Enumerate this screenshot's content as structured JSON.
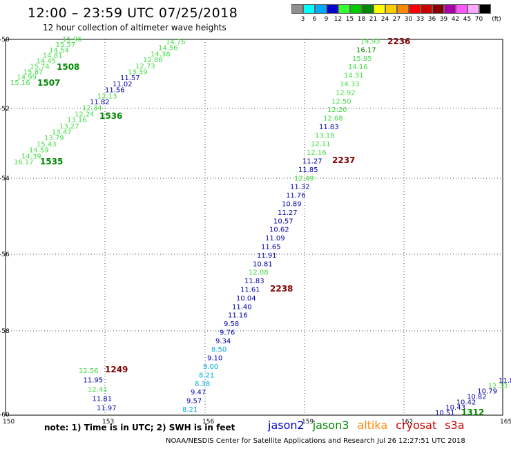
{
  "title": "12:00 – 23:59 UTC 07/25/2018",
  "subtitle": "12 hour collection of altimeter wave heights",
  "scale": {
    "unit": "(ft)",
    "items": [
      {
        "label": "3",
        "color": "#909090"
      },
      {
        "label": "6",
        "color": "#00ffff"
      },
      {
        "label": "9",
        "color": "#00aaff"
      },
      {
        "label": "12",
        "color": "#0000cc"
      },
      {
        "label": "15",
        "color": "#33ff33"
      },
      {
        "label": "18",
        "color": "#00cc00"
      },
      {
        "label": "21",
        "color": "#008800"
      },
      {
        "label": "24",
        "color": "#ffff00"
      },
      {
        "label": "27",
        "color": "#ffcc00"
      },
      {
        "label": "30",
        "color": "#ff8800"
      },
      {
        "label": "33",
        "color": "#ff0000"
      },
      {
        "label": "36",
        "color": "#cc0000"
      },
      {
        "label": "39",
        "color": "#880000"
      },
      {
        "label": "42",
        "color": "#aa00aa"
      },
      {
        "label": "45",
        "color": "#ff55ff"
      },
      {
        "label": "70",
        "color": "#ffaaff"
      },
      {
        "label": "",
        "color": "#000000"
      }
    ]
  },
  "axes": {
    "x_ticks": [
      "150",
      "153",
      "156",
      "159",
      "162",
      "165"
    ],
    "y_ticks": [
      "-50",
      "-52",
      "-54",
      "-56",
      "-58",
      "-60"
    ]
  },
  "colors": {
    "light_green": "#44dd44",
    "green": "#008800",
    "blue": "#0000aa",
    "light_blue": "#00aadd",
    "dark_red": "#800000"
  },
  "tracks": [
    {
      "pass": "1508",
      "pass_color": "#008800",
      "points": [
        {
          "v": "15.96",
          "c": "#44dd44"
        },
        {
          "v": "15.57",
          "c": "#44dd44"
        },
        {
          "v": "14.54",
          "c": "#44dd44"
        },
        {
          "v": "14.81",
          "c": "#44dd44"
        },
        {
          "v": "14.45",
          "c": "#44dd44"
        },
        {
          "v": "15.74",
          "c": "#44dd44"
        },
        {
          "v": "15.87",
          "c": "#44dd44"
        },
        {
          "v": "14.99",
          "c": "#44dd44"
        },
        {
          "v": "15.16",
          "c": "#44dd44"
        }
      ]
    },
    {
      "pass": "1507",
      "pass_color": "#008800",
      "points": []
    },
    {
      "pass": "1536",
      "pass_color": "#008800",
      "points": [
        {
          "v": "14.76",
          "c": "#44dd44"
        },
        {
          "v": "14.56",
          "c": "#44dd44"
        },
        {
          "v": "14.38",
          "c": "#44dd44"
        },
        {
          "v": "12.88",
          "c": "#44dd44"
        },
        {
          "v": "12.73",
          "c": "#44dd44"
        },
        {
          "v": "13.39",
          "c": "#44dd44"
        },
        {
          "v": "11.57",
          "c": "#0000aa"
        },
        {
          "v": "11.02",
          "c": "#0000aa"
        },
        {
          "v": "11.56",
          "c": "#0000aa"
        },
        {
          "v": "12.13",
          "c": "#44dd44"
        },
        {
          "v": "11.82",
          "c": "#0000aa"
        },
        {
          "v": "12.34",
          "c": "#44dd44"
        },
        {
          "v": "12.24",
          "c": "#44dd44"
        },
        {
          "v": "13.16",
          "c": "#44dd44"
        },
        {
          "v": "13.27",
          "c": "#44dd44"
        },
        {
          "v": "13.47",
          "c": "#44dd44"
        },
        {
          "v": "13.79",
          "c": "#44dd44"
        },
        {
          "v": "15.43",
          "c": "#44dd44"
        },
        {
          "v": "14.59",
          "c": "#44dd44"
        },
        {
          "v": "14.39",
          "c": "#44dd44"
        },
        {
          "v": "16.17",
          "c": "#44dd44"
        }
      ]
    },
    {
      "pass": "1535",
      "pass_color": "#008800",
      "points": []
    },
    {
      "pass": "2236",
      "pass_color": "#800000",
      "points": [
        {
          "v": "14.93",
          "c": "#44dd44"
        },
        {
          "v": "16.17",
          "c": "#008800"
        },
        {
          "v": "15.95",
          "c": "#44dd44"
        },
        {
          "v": "14.16",
          "c": "#44dd44"
        },
        {
          "v": "14.31",
          "c": "#44dd44"
        },
        {
          "v": "14.33",
          "c": "#44dd44"
        },
        {
          "v": "12.92",
          "c": "#44dd44"
        },
        {
          "v": "12.50",
          "c": "#44dd44"
        },
        {
          "v": "12.20",
          "c": "#44dd44"
        },
        {
          "v": "12.68",
          "c": "#44dd44"
        },
        {
          "v": "11.83",
          "c": "#0000aa"
        },
        {
          "v": "13.18",
          "c": "#44dd44"
        },
        {
          "v": "12.11",
          "c": "#44dd44"
        },
        {
          "v": "12.16",
          "c": "#44dd44"
        },
        {
          "v": "11.27",
          "c": "#0000aa"
        },
        {
          "v": "11.85",
          "c": "#0000aa"
        },
        {
          "v": "12.49",
          "c": "#44dd44"
        },
        {
          "v": "11.32",
          "c": "#0000aa"
        },
        {
          "v": "11.76",
          "c": "#0000aa"
        },
        {
          "v": "10.89",
          "c": "#0000aa"
        },
        {
          "v": "11.27",
          "c": "#0000aa"
        },
        {
          "v": "10.57",
          "c": "#0000aa"
        },
        {
          "v": "10.62",
          "c": "#0000aa"
        },
        {
          "v": "11.09",
          "c": "#0000aa"
        },
        {
          "v": "11.65",
          "c": "#0000aa"
        },
        {
          "v": "11.91",
          "c": "#0000aa"
        },
        {
          "v": "10.81",
          "c": "#0000aa"
        },
        {
          "v": "12.08",
          "c": "#44dd44"
        },
        {
          "v": "11.83",
          "c": "#0000aa"
        },
        {
          "v": "11.61",
          "c": "#0000aa"
        },
        {
          "v": "10.04",
          "c": "#0000aa"
        },
        {
          "v": "11.40",
          "c": "#0000aa"
        },
        {
          "v": "11.16",
          "c": "#0000aa"
        },
        {
          "v": "9.58",
          "c": "#0000aa"
        },
        {
          "v": "9.76",
          "c": "#0000aa"
        },
        {
          "v": "9.34",
          "c": "#0000aa"
        },
        {
          "v": "8.50",
          "c": "#00aadd"
        },
        {
          "v": "9.10",
          "c": "#0000aa"
        },
        {
          "v": "9.00",
          "c": "#00aadd"
        },
        {
          "v": "8.21",
          "c": "#00aadd"
        },
        {
          "v": "8.38",
          "c": "#00aadd"
        },
        {
          "v": "9.47",
          "c": "#0000aa"
        },
        {
          "v": "9.57",
          "c": "#0000aa"
        },
        {
          "v": "8.21",
          "c": "#00aadd"
        }
      ]
    },
    {
      "pass": "2237",
      "pass_color": "#800000",
      "points": []
    },
    {
      "pass": "2238",
      "pass_color": "#800000",
      "points": []
    },
    {
      "pass": "1249",
      "pass_color": "#800000",
      "points": [
        {
          "v": "12.56",
          "c": "#44dd44"
        },
        {
          "v": "11.95",
          "c": "#0000aa"
        },
        {
          "v": "12.41",
          "c": "#44dd44"
        },
        {
          "v": "11.81",
          "c": "#0000aa"
        },
        {
          "v": "11.97",
          "c": "#0000aa"
        }
      ]
    },
    {
      "pass": "1312",
      "pass_color": "#008800",
      "points": [
        {
          "v": "11.8",
          "c": "#0000aa"
        },
        {
          "v": "12.33",
          "c": "#44dd44"
        },
        {
          "v": "10.79",
          "c": "#0000aa"
        },
        {
          "v": "10.82",
          "c": "#0000aa"
        },
        {
          "v": "10.42",
          "c": "#0000aa"
        },
        {
          "v": "10.43",
          "c": "#0000aa"
        },
        {
          "v": "10.51",
          "c": "#0000aa"
        }
      ]
    }
  ],
  "note": "note: 1) Time is in UTC; 2) SWH is in feet",
  "legend": [
    {
      "label": "jason2",
      "color": "#0000cc"
    },
    {
      "label": "jason3",
      "color": "#008800"
    },
    {
      "label": "altika",
      "color": "#ff8800"
    },
    {
      "label": "cryosat",
      "color": "#cc0000"
    },
    {
      "label": "s3a",
      "color": "#cc0000"
    }
  ],
  "footer": "NOAA/NESDIS Center for Satellite Applications and Research   Jul 26 12:27:51 UTC 2018"
}
